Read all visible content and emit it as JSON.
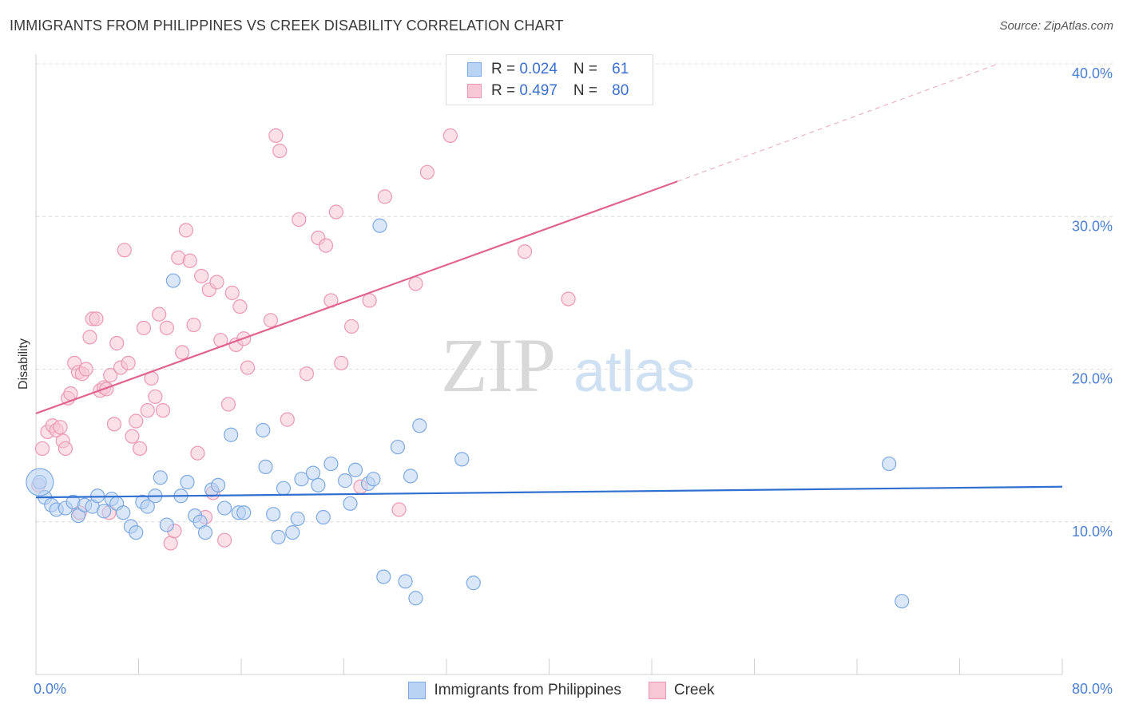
{
  "header": {
    "title": "IMMIGRANTS FROM PHILIPPINES VS CREEK DISABILITY CORRELATION CHART",
    "source": "Source: ZipAtlas.com"
  },
  "stats": {
    "rows": [
      {
        "r_label": "R = ",
        "r_value": "0.024",
        "n_label": "N = ",
        "n_value": "61"
      },
      {
        "r_label": "R = ",
        "r_value": "0.497",
        "n_label": "N = ",
        "n_value": "80"
      }
    ]
  },
  "watermark": {
    "zip": "ZIP",
    "atlas": "atlas"
  },
  "colors": {
    "blue_fill": "#b9d3f4",
    "blue_stroke": "#7ea9e2",
    "blue_line": "#2f6fcf",
    "pink_fill": "#f8c7d6",
    "pink_stroke": "#eb98b4",
    "pink_line": "#e0648f",
    "grid": "#dcdcdc",
    "tick_text": "#4a7fd4"
  },
  "chart_data": {
    "type": "scatter",
    "title": "IMMIGRANTS FROM PHILIPPINES VS CREEK DISABILITY CORRELATION CHART",
    "xlabel": "",
    "ylabel": "Disability",
    "xlim": [
      0,
      80
    ],
    "ylim": [
      0,
      40
    ],
    "x_tick_labels": [
      "0.0%",
      "80.0%"
    ],
    "y_ticks": [
      10,
      20,
      30,
      40
    ],
    "y_tick_labels": [
      "10.0%",
      "20.0%",
      "30.0%",
      "40.0%"
    ],
    "grid": true,
    "legend_position": "bottom-center",
    "series": [
      {
        "name": "Immigrants from Philippines",
        "color": "#b9d3f4",
        "trend": {
          "x0": 0,
          "y0": 11.6,
          "x1": 80,
          "y1": 12.3
        },
        "points": [
          [
            0.3,
            12.6
          ],
          [
            0.7,
            11.6
          ],
          [
            1.2,
            11.1
          ],
          [
            1.6,
            10.8
          ],
          [
            2.3,
            10.9
          ],
          [
            2.9,
            11.3
          ],
          [
            3.3,
            10.4
          ],
          [
            3.8,
            11.1
          ],
          [
            4.4,
            11.0
          ],
          [
            4.8,
            11.7
          ],
          [
            5.3,
            10.7
          ],
          [
            5.9,
            11.5
          ],
          [
            6.3,
            11.2
          ],
          [
            6.8,
            10.6
          ],
          [
            7.4,
            9.7
          ],
          [
            7.8,
            9.3
          ],
          [
            8.3,
            11.3
          ],
          [
            8.7,
            11.0
          ],
          [
            9.3,
            11.7
          ],
          [
            9.7,
            12.9
          ],
          [
            10.2,
            9.8
          ],
          [
            10.7,
            25.8
          ],
          [
            11.3,
            11.7
          ],
          [
            11.8,
            12.6
          ],
          [
            12.4,
            10.4
          ],
          [
            12.8,
            10.0
          ],
          [
            13.2,
            9.3
          ],
          [
            13.7,
            12.1
          ],
          [
            14.2,
            12.4
          ],
          [
            14.7,
            10.9
          ],
          [
            15.2,
            15.7
          ],
          [
            15.8,
            10.6
          ],
          [
            16.2,
            10.6
          ],
          [
            17.7,
            16.0
          ],
          [
            17.9,
            13.6
          ],
          [
            18.5,
            10.5
          ],
          [
            18.9,
            9.0
          ],
          [
            19.3,
            12.2
          ],
          [
            20.0,
            9.3
          ],
          [
            20.4,
            10.2
          ],
          [
            20.7,
            12.8
          ],
          [
            21.6,
            13.2
          ],
          [
            22.0,
            12.4
          ],
          [
            22.4,
            10.3
          ],
          [
            23.0,
            13.8
          ],
          [
            24.1,
            12.7
          ],
          [
            24.5,
            11.2
          ],
          [
            24.9,
            13.4
          ],
          [
            25.9,
            12.5
          ],
          [
            26.3,
            12.8
          ],
          [
            26.8,
            29.4
          ],
          [
            27.1,
            6.4
          ],
          [
            28.2,
            14.9
          ],
          [
            28.8,
            6.1
          ],
          [
            29.6,
            5.0
          ],
          [
            29.9,
            16.3
          ],
          [
            33.2,
            14.1
          ],
          [
            34.1,
            6.0
          ],
          [
            66.5,
            13.8
          ],
          [
            67.5,
            4.8
          ],
          [
            29.2,
            13.0
          ]
        ]
      },
      {
        "name": "Creek",
        "color": "#f8c7d6",
        "trend": {
          "x0": 0,
          "y0": 17.1,
          "x1": 50,
          "y1": 32.3
        },
        "trend_dashed_to": {
          "x": 75,
          "y": 40.0
        },
        "points": [
          [
            0.2,
            12.4
          ],
          [
            0.5,
            14.8
          ],
          [
            0.9,
            15.9
          ],
          [
            1.3,
            16.3
          ],
          [
            1.6,
            16.0
          ],
          [
            1.9,
            16.2
          ],
          [
            2.1,
            15.3
          ],
          [
            2.3,
            14.8
          ],
          [
            2.5,
            18.1
          ],
          [
            2.7,
            18.4
          ],
          [
            3.0,
            20.4
          ],
          [
            3.3,
            19.8
          ],
          [
            3.6,
            19.7
          ],
          [
            3.9,
            20.0
          ],
          [
            4.2,
            22.1
          ],
          [
            4.4,
            23.3
          ],
          [
            4.7,
            23.3
          ],
          [
            5.0,
            18.6
          ],
          [
            5.3,
            18.8
          ],
          [
            5.5,
            18.7
          ],
          [
            5.8,
            19.6
          ],
          [
            6.1,
            16.4
          ],
          [
            6.3,
            21.7
          ],
          [
            6.6,
            20.1
          ],
          [
            6.9,
            27.8
          ],
          [
            7.2,
            20.4
          ],
          [
            7.5,
            15.6
          ],
          [
            7.8,
            16.6
          ],
          [
            8.1,
            14.8
          ],
          [
            8.4,
            22.7
          ],
          [
            8.7,
            17.3
          ],
          [
            9.0,
            19.4
          ],
          [
            9.3,
            18.2
          ],
          [
            9.6,
            23.6
          ],
          [
            9.9,
            17.3
          ],
          [
            10.2,
            22.7
          ],
          [
            10.5,
            8.6
          ],
          [
            10.8,
            9.4
          ],
          [
            11.1,
            27.3
          ],
          [
            11.4,
            21.1
          ],
          [
            11.7,
            29.1
          ],
          [
            12.0,
            27.1
          ],
          [
            12.3,
            22.9
          ],
          [
            12.6,
            14.5
          ],
          [
            12.9,
            26.1
          ],
          [
            13.2,
            10.3
          ],
          [
            13.5,
            25.2
          ],
          [
            13.8,
            11.9
          ],
          [
            14.1,
            25.7
          ],
          [
            14.4,
            21.9
          ],
          [
            14.7,
            8.8
          ],
          [
            15.0,
            17.7
          ],
          [
            15.3,
            25.0
          ],
          [
            15.6,
            21.6
          ],
          [
            15.9,
            24.1
          ],
          [
            16.2,
            22.0
          ],
          [
            16.5,
            20.1
          ],
          [
            18.3,
            23.2
          ],
          [
            18.7,
            35.3
          ],
          [
            19.0,
            34.3
          ],
          [
            19.6,
            16.7
          ],
          [
            20.5,
            29.8
          ],
          [
            21.1,
            19.7
          ],
          [
            22.0,
            28.6
          ],
          [
            22.6,
            28.1
          ],
          [
            23.0,
            24.5
          ],
          [
            23.4,
            30.3
          ],
          [
            23.8,
            20.4
          ],
          [
            24.6,
            22.8
          ],
          [
            25.3,
            12.3
          ],
          [
            26.0,
            24.5
          ],
          [
            27.2,
            31.3
          ],
          [
            28.3,
            10.8
          ],
          [
            29.6,
            25.6
          ],
          [
            30.5,
            32.9
          ],
          [
            32.3,
            35.3
          ],
          [
            38.1,
            27.7
          ],
          [
            41.5,
            24.6
          ],
          [
            5.7,
            10.6
          ],
          [
            3.4,
            10.6
          ]
        ]
      }
    ]
  }
}
